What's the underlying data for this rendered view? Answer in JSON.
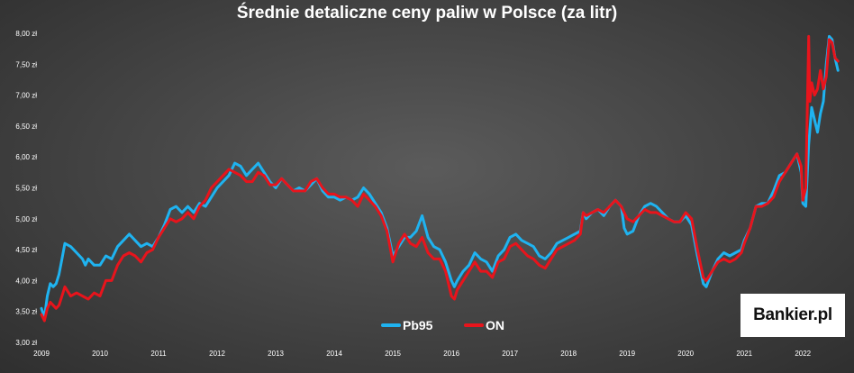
{
  "chart_data": {
    "type": "line",
    "title": "Średnie detaliczne ceny paliw w Polsce (za litr)",
    "xlabel": "",
    "ylabel": "",
    "x_ticks": [
      "2009",
      "2010",
      "2011",
      "2012",
      "2013",
      "2014",
      "2015",
      "2016",
      "2017",
      "2018",
      "2019",
      "2020",
      "2021",
      "2022"
    ],
    "y_ticks": [
      "3,00 zł",
      "3,50 zł",
      "4,00 zł",
      "4,50 zł",
      "5,00 zł",
      "5,50 zł",
      "6,00 zł",
      "6,50 zł",
      "7,00 zł",
      "7,50 zł",
      "8,00 zł"
    ],
    "ylim": [
      3.0,
      8.0
    ],
    "xlim": [
      2009.0,
      2022.75
    ],
    "legend_position": "bottom-center",
    "grid": false,
    "series": [
      {
        "name": "Pb95",
        "color": "#1fb3f0",
        "points": [
          [
            2009.0,
            3.55
          ],
          [
            2009.05,
            3.4
          ],
          [
            2009.1,
            3.75
          ],
          [
            2009.15,
            3.95
          ],
          [
            2009.2,
            3.9
          ],
          [
            2009.25,
            3.95
          ],
          [
            2009.3,
            4.1
          ],
          [
            2009.35,
            4.35
          ],
          [
            2009.4,
            4.6
          ],
          [
            2009.5,
            4.55
          ],
          [
            2009.6,
            4.45
          ],
          [
            2009.7,
            4.35
          ],
          [
            2009.75,
            4.25
          ],
          [
            2009.8,
            4.35
          ],
          [
            2009.9,
            4.25
          ],
          [
            2010.0,
            4.25
          ],
          [
            2010.1,
            4.4
          ],
          [
            2010.2,
            4.35
          ],
          [
            2010.3,
            4.55
          ],
          [
            2010.4,
            4.65
          ],
          [
            2010.5,
            4.75
          ],
          [
            2010.6,
            4.65
          ],
          [
            2010.7,
            4.55
          ],
          [
            2010.8,
            4.6
          ],
          [
            2010.9,
            4.55
          ],
          [
            2011.0,
            4.7
          ],
          [
            2011.1,
            4.9
          ],
          [
            2011.2,
            5.15
          ],
          [
            2011.3,
            5.2
          ],
          [
            2011.4,
            5.1
          ],
          [
            2011.5,
            5.2
          ],
          [
            2011.6,
            5.1
          ],
          [
            2011.7,
            5.25
          ],
          [
            2011.8,
            5.2
          ],
          [
            2011.9,
            5.35
          ],
          [
            2012.0,
            5.5
          ],
          [
            2012.1,
            5.6
          ],
          [
            2012.2,
            5.7
          ],
          [
            2012.3,
            5.9
          ],
          [
            2012.4,
            5.85
          ],
          [
            2012.5,
            5.7
          ],
          [
            2012.6,
            5.8
          ],
          [
            2012.7,
            5.9
          ],
          [
            2012.8,
            5.75
          ],
          [
            2012.9,
            5.6
          ],
          [
            2013.0,
            5.5
          ],
          [
            2013.1,
            5.65
          ],
          [
            2013.2,
            5.55
          ],
          [
            2013.3,
            5.45
          ],
          [
            2013.4,
            5.5
          ],
          [
            2013.5,
            5.45
          ],
          [
            2013.6,
            5.55
          ],
          [
            2013.7,
            5.65
          ],
          [
            2013.8,
            5.45
          ],
          [
            2013.9,
            5.35
          ],
          [
            2014.0,
            5.35
          ],
          [
            2014.1,
            5.3
          ],
          [
            2014.2,
            5.35
          ],
          [
            2014.3,
            5.3
          ],
          [
            2014.4,
            5.35
          ],
          [
            2014.5,
            5.5
          ],
          [
            2014.6,
            5.4
          ],
          [
            2014.7,
            5.25
          ],
          [
            2014.8,
            5.1
          ],
          [
            2014.9,
            4.85
          ],
          [
            2015.0,
            4.4
          ],
          [
            2015.1,
            4.55
          ],
          [
            2015.2,
            4.7
          ],
          [
            2015.3,
            4.7
          ],
          [
            2015.4,
            4.8
          ],
          [
            2015.5,
            5.05
          ],
          [
            2015.6,
            4.7
          ],
          [
            2015.7,
            4.55
          ],
          [
            2015.8,
            4.5
          ],
          [
            2015.9,
            4.3
          ],
          [
            2016.0,
            4.0
          ],
          [
            2016.05,
            3.9
          ],
          [
            2016.1,
            4.0
          ],
          [
            2016.2,
            4.15
          ],
          [
            2016.3,
            4.25
          ],
          [
            2016.4,
            4.45
          ],
          [
            2016.5,
            4.35
          ],
          [
            2016.6,
            4.3
          ],
          [
            2016.7,
            4.15
          ],
          [
            2016.8,
            4.4
          ],
          [
            2016.9,
            4.5
          ],
          [
            2017.0,
            4.7
          ],
          [
            2017.1,
            4.75
          ],
          [
            2017.2,
            4.65
          ],
          [
            2017.3,
            4.6
          ],
          [
            2017.4,
            4.55
          ],
          [
            2017.5,
            4.4
          ],
          [
            2017.6,
            4.35
          ],
          [
            2017.7,
            4.45
          ],
          [
            2017.8,
            4.6
          ],
          [
            2017.9,
            4.65
          ],
          [
            2018.0,
            4.7
          ],
          [
            2018.1,
            4.75
          ],
          [
            2018.2,
            4.8
          ],
          [
            2018.25,
            5.1
          ],
          [
            2018.3,
            5.0
          ],
          [
            2018.4,
            5.1
          ],
          [
            2018.5,
            5.15
          ],
          [
            2018.6,
            5.05
          ],
          [
            2018.7,
            5.2
          ],
          [
            2018.8,
            5.3
          ],
          [
            2018.9,
            5.2
          ],
          [
            2018.95,
            4.85
          ],
          [
            2019.0,
            4.75
          ],
          [
            2019.1,
            4.8
          ],
          [
            2019.2,
            5.05
          ],
          [
            2019.3,
            5.2
          ],
          [
            2019.4,
            5.25
          ],
          [
            2019.5,
            5.2
          ],
          [
            2019.6,
            5.1
          ],
          [
            2019.7,
            5.0
          ],
          [
            2019.8,
            4.95
          ],
          [
            2019.9,
            4.95
          ],
          [
            2020.0,
            5.05
          ],
          [
            2020.1,
            4.9
          ],
          [
            2020.2,
            4.4
          ],
          [
            2020.3,
            3.95
          ],
          [
            2020.35,
            3.9
          ],
          [
            2020.45,
            4.15
          ],
          [
            2020.55,
            4.35
          ],
          [
            2020.65,
            4.45
          ],
          [
            2020.75,
            4.4
          ],
          [
            2020.85,
            4.45
          ],
          [
            2020.95,
            4.5
          ],
          [
            2021.0,
            4.65
          ],
          [
            2021.1,
            4.85
          ],
          [
            2021.2,
            5.2
          ],
          [
            2021.3,
            5.25
          ],
          [
            2021.4,
            5.25
          ],
          [
            2021.5,
            5.45
          ],
          [
            2021.6,
            5.7
          ],
          [
            2021.7,
            5.75
          ],
          [
            2021.8,
            5.9
          ],
          [
            2021.9,
            6.05
          ],
          [
            2021.97,
            5.75
          ],
          [
            2022.0,
            5.25
          ],
          [
            2022.05,
            5.2
          ],
          [
            2022.1,
            6.2
          ],
          [
            2022.15,
            6.8
          ],
          [
            2022.2,
            6.6
          ],
          [
            2022.25,
            6.4
          ],
          [
            2022.3,
            6.7
          ],
          [
            2022.35,
            6.9
          ],
          [
            2022.4,
            7.5
          ],
          [
            2022.45,
            7.95
          ],
          [
            2022.5,
            7.9
          ],
          [
            2022.55,
            7.6
          ],
          [
            2022.6,
            7.4
          ]
        ]
      },
      {
        "name": "ON",
        "color": "#e8141c",
        "points": [
          [
            2009.0,
            3.45
          ],
          [
            2009.05,
            3.35
          ],
          [
            2009.1,
            3.55
          ],
          [
            2009.15,
            3.65
          ],
          [
            2009.2,
            3.6
          ],
          [
            2009.25,
            3.55
          ],
          [
            2009.3,
            3.6
          ],
          [
            2009.35,
            3.75
          ],
          [
            2009.4,
            3.9
          ],
          [
            2009.5,
            3.75
          ],
          [
            2009.6,
            3.8
          ],
          [
            2009.7,
            3.75
          ],
          [
            2009.8,
            3.7
          ],
          [
            2009.9,
            3.8
          ],
          [
            2010.0,
            3.75
          ],
          [
            2010.1,
            4.0
          ],
          [
            2010.2,
            4.0
          ],
          [
            2010.3,
            4.25
          ],
          [
            2010.4,
            4.4
          ],
          [
            2010.5,
            4.45
          ],
          [
            2010.6,
            4.4
          ],
          [
            2010.7,
            4.3
          ],
          [
            2010.8,
            4.45
          ],
          [
            2010.9,
            4.5
          ],
          [
            2011.0,
            4.7
          ],
          [
            2011.1,
            4.85
          ],
          [
            2011.2,
            5.0
          ],
          [
            2011.3,
            4.95
          ],
          [
            2011.4,
            5.0
          ],
          [
            2011.5,
            5.1
          ],
          [
            2011.6,
            5.0
          ],
          [
            2011.7,
            5.2
          ],
          [
            2011.8,
            5.3
          ],
          [
            2011.9,
            5.5
          ],
          [
            2012.0,
            5.6
          ],
          [
            2012.1,
            5.7
          ],
          [
            2012.2,
            5.8
          ],
          [
            2012.3,
            5.75
          ],
          [
            2012.4,
            5.7
          ],
          [
            2012.5,
            5.6
          ],
          [
            2012.6,
            5.6
          ],
          [
            2012.7,
            5.75
          ],
          [
            2012.8,
            5.7
          ],
          [
            2012.9,
            5.55
          ],
          [
            2013.0,
            5.55
          ],
          [
            2013.1,
            5.65
          ],
          [
            2013.2,
            5.55
          ],
          [
            2013.3,
            5.45
          ],
          [
            2013.4,
            5.45
          ],
          [
            2013.5,
            5.45
          ],
          [
            2013.6,
            5.6
          ],
          [
            2013.7,
            5.65
          ],
          [
            2013.8,
            5.5
          ],
          [
            2013.9,
            5.4
          ],
          [
            2014.0,
            5.4
          ],
          [
            2014.1,
            5.35
          ],
          [
            2014.2,
            5.35
          ],
          [
            2014.3,
            5.3
          ],
          [
            2014.4,
            5.2
          ],
          [
            2014.5,
            5.4
          ],
          [
            2014.6,
            5.3
          ],
          [
            2014.7,
            5.2
          ],
          [
            2014.8,
            5.05
          ],
          [
            2014.9,
            4.8
          ],
          [
            2015.0,
            4.3
          ],
          [
            2015.1,
            4.6
          ],
          [
            2015.2,
            4.75
          ],
          [
            2015.3,
            4.6
          ],
          [
            2015.4,
            4.55
          ],
          [
            2015.5,
            4.7
          ],
          [
            2015.6,
            4.45
          ],
          [
            2015.7,
            4.35
          ],
          [
            2015.8,
            4.35
          ],
          [
            2015.9,
            4.15
          ],
          [
            2016.0,
            3.75
          ],
          [
            2016.05,
            3.7
          ],
          [
            2016.1,
            3.85
          ],
          [
            2016.2,
            4.0
          ],
          [
            2016.3,
            4.15
          ],
          [
            2016.4,
            4.3
          ],
          [
            2016.5,
            4.15
          ],
          [
            2016.6,
            4.15
          ],
          [
            2016.7,
            4.05
          ],
          [
            2016.8,
            4.3
          ],
          [
            2016.9,
            4.35
          ],
          [
            2017.0,
            4.55
          ],
          [
            2017.1,
            4.6
          ],
          [
            2017.2,
            4.5
          ],
          [
            2017.3,
            4.4
          ],
          [
            2017.4,
            4.35
          ],
          [
            2017.5,
            4.25
          ],
          [
            2017.6,
            4.2
          ],
          [
            2017.7,
            4.35
          ],
          [
            2017.8,
            4.5
          ],
          [
            2017.9,
            4.55
          ],
          [
            2018.0,
            4.6
          ],
          [
            2018.1,
            4.65
          ],
          [
            2018.2,
            4.75
          ],
          [
            2018.25,
            5.1
          ],
          [
            2018.3,
            5.05
          ],
          [
            2018.4,
            5.1
          ],
          [
            2018.5,
            5.15
          ],
          [
            2018.6,
            5.1
          ],
          [
            2018.7,
            5.2
          ],
          [
            2018.8,
            5.3
          ],
          [
            2018.9,
            5.2
          ],
          [
            2019.0,
            5.0
          ],
          [
            2019.1,
            4.95
          ],
          [
            2019.2,
            5.05
          ],
          [
            2019.3,
            5.15
          ],
          [
            2019.4,
            5.1
          ],
          [
            2019.5,
            5.1
          ],
          [
            2019.6,
            5.05
          ],
          [
            2019.7,
            5.0
          ],
          [
            2019.8,
            4.95
          ],
          [
            2019.9,
            4.95
          ],
          [
            2020.0,
            5.1
          ],
          [
            2020.1,
            5.0
          ],
          [
            2020.2,
            4.5
          ],
          [
            2020.3,
            4.05
          ],
          [
            2020.35,
            4.0
          ],
          [
            2020.45,
            4.15
          ],
          [
            2020.55,
            4.3
          ],
          [
            2020.65,
            4.35
          ],
          [
            2020.75,
            4.3
          ],
          [
            2020.85,
            4.35
          ],
          [
            2020.95,
            4.45
          ],
          [
            2021.0,
            4.6
          ],
          [
            2021.1,
            4.85
          ],
          [
            2021.2,
            5.2
          ],
          [
            2021.3,
            5.2
          ],
          [
            2021.4,
            5.25
          ],
          [
            2021.5,
            5.35
          ],
          [
            2021.6,
            5.6
          ],
          [
            2021.7,
            5.75
          ],
          [
            2021.8,
            5.9
          ],
          [
            2021.9,
            6.05
          ],
          [
            2021.97,
            5.85
          ],
          [
            2022.0,
            5.3
          ],
          [
            2022.05,
            5.5
          ],
          [
            2022.1,
            7.95
          ],
          [
            2022.12,
            6.9
          ],
          [
            2022.15,
            7.2
          ],
          [
            2022.2,
            7.0
          ],
          [
            2022.25,
            7.1
          ],
          [
            2022.3,
            7.4
          ],
          [
            2022.35,
            7.1
          ],
          [
            2022.4,
            7.3
          ],
          [
            2022.45,
            7.9
          ],
          [
            2022.5,
            7.85
          ],
          [
            2022.55,
            7.6
          ],
          [
            2022.6,
            7.55
          ]
        ]
      }
    ]
  },
  "brand": {
    "logo_text": "Bankier.pl"
  }
}
